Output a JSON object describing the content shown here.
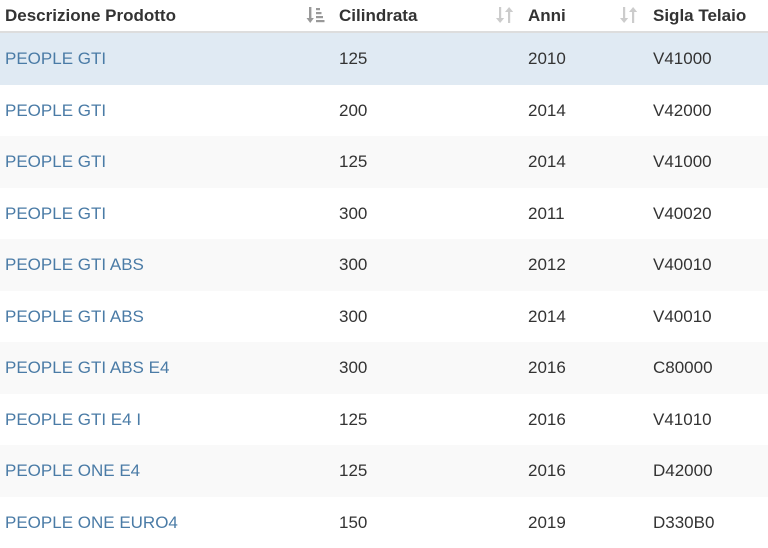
{
  "table": {
    "columns": [
      {
        "label": "Descrizione Prodotto",
        "sort_icon": "sort-alpha-asc-icon"
      },
      {
        "label": "Cilindrata",
        "sort_icon": "sort-both-icon"
      },
      {
        "label": "Anni",
        "sort_icon": "sort-both-icon"
      },
      {
        "label": "Sigla Telaio",
        "sort_icon": ""
      }
    ],
    "rows": [
      {
        "descrizione": "PEOPLE GTI",
        "cilindrata": "125",
        "anni": "2010",
        "telaio": "V41000",
        "selected": true
      },
      {
        "descrizione": "PEOPLE GTI",
        "cilindrata": "200",
        "anni": "2014",
        "telaio": "V42000",
        "selected": false
      },
      {
        "descrizione": "PEOPLE GTI",
        "cilindrata": "125",
        "anni": "2014",
        "telaio": "V41000",
        "selected": false
      },
      {
        "descrizione": "PEOPLE GTI",
        "cilindrata": "300",
        "anni": "2011",
        "telaio": "V40020",
        "selected": false
      },
      {
        "descrizione": "PEOPLE GTI ABS",
        "cilindrata": "300",
        "anni": "2012",
        "telaio": "V40010",
        "selected": false
      },
      {
        "descrizione": "PEOPLE GTI ABS",
        "cilindrata": "300",
        "anni": "2014",
        "telaio": "V40010",
        "selected": false
      },
      {
        "descrizione": "PEOPLE GTI ABS E4",
        "cilindrata": "300",
        "anni": "2016",
        "telaio": "C80000",
        "selected": false
      },
      {
        "descrizione": "PEOPLE GTI E4 I",
        "cilindrata": "125",
        "anni": "2016",
        "telaio": "V41010",
        "selected": false
      },
      {
        "descrizione": "PEOPLE ONE E4",
        "cilindrata": "125",
        "anni": "2016",
        "telaio": "D42000",
        "selected": false
      },
      {
        "descrizione": "PEOPLE ONE EURO4",
        "cilindrata": "150",
        "anni": "2019",
        "telaio": "D330B0",
        "selected": false
      }
    ]
  },
  "colors": {
    "link": "#4a7ba6",
    "text": "#333333",
    "row_stripe": "#f9f9f9",
    "row_selected": "#e0eaf3",
    "header_border": "#dddddd",
    "sort_icon": "#cccccc",
    "sort_icon_active": "#999999"
  }
}
